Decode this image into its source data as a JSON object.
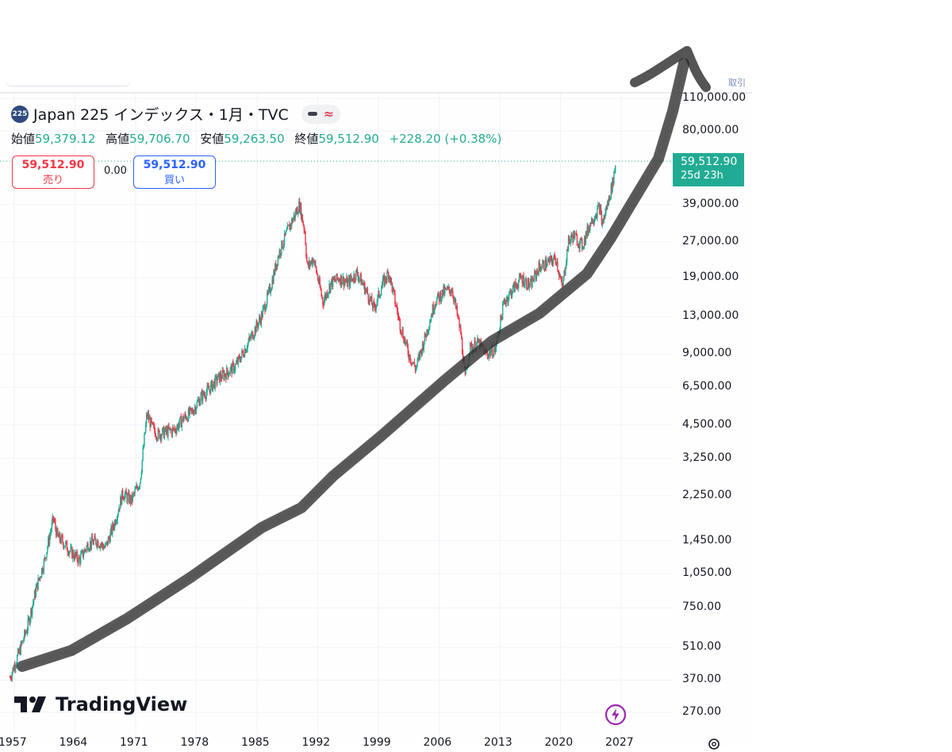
{
  "header": {
    "symbol_badge": "225",
    "title": "Japan 225 インデックス・1月・TVC",
    "corner_text": "取引"
  },
  "ohlc": {
    "open_label": "始値",
    "open": "59,379.12",
    "high_label": "高値",
    "high": "59,706.70",
    "low_label": "安値",
    "low": "59,263.50",
    "close_label": "終値",
    "close": "59,512.90",
    "change": "+228.20 (+0.38%)"
  },
  "trade": {
    "sell_price": "59,512.90",
    "sell_label": "売り",
    "spread": "0.00",
    "buy_price": "59,512.90",
    "buy_label": "買い"
  },
  "last_price": {
    "price": "59,512.90",
    "countdown": "25d 23h"
  },
  "branding": {
    "logo_text": "TradingView"
  },
  "colors": {
    "up": "#22ab94",
    "down": "#f23645",
    "accent": "#2962ff",
    "lightning": "#9c27b0"
  },
  "icons": [
    "lightning-icon",
    "gear-icon",
    "tradingview-logo-icon"
  ],
  "chart_data": {
    "type": "line",
    "title": "Japan 225 インデックス・1月・TVC",
    "scale": "log",
    "x_ticks": [
      "1957",
      "1964",
      "1971",
      "1978",
      "1985",
      "1992",
      "1999",
      "2006",
      "2013",
      "2020",
      "2027"
    ],
    "y_ticks": [
      "110,000.00",
      "80,000.00",
      "39,000.00",
      "27,000.00",
      "19,000.00",
      "13,000.00",
      "9,000.00",
      "6,500.00",
      "4,500.00",
      "3,250.00",
      "2,250.00",
      "1,450.00",
      "1,050.00",
      "750.00",
      "510.00",
      "370.00",
      "270.00"
    ],
    "y_tick_values": [
      110000,
      80000,
      39000,
      27000,
      19000,
      13000,
      9000,
      6500,
      4500,
      3250,
      2250,
      1450,
      1050,
      750,
      510,
      370,
      270
    ],
    "xlim": [
      1957,
      2028
    ],
    "ylim": [
      260,
      125000
    ],
    "grid": true,
    "series": [
      {
        "x": [
          1956.5,
          1957.5,
          1958.5,
          1959.5,
          1960.5,
          1961.5,
          1962.0,
          1962.5,
          1963.5,
          1964.5,
          1965.5,
          1966.5,
          1967.5,
          1968.5,
          1969.5,
          1970.5,
          1971.5,
          1972.3,
          1972.9,
          1973.5,
          1974.5,
          1975.5,
          1976.5,
          1977.5,
          1978.5,
          1979.5,
          1980.5,
          1981.5,
          1982.5,
          1983.5,
          1984.5,
          1985.5,
          1986.5,
          1987.5,
          1988.5,
          1989.9,
          1990.5,
          1990.8,
          1991.5,
          1992.6,
          1993.5,
          1994.5,
          1995.5,
          1996.5,
          1997.5,
          1998.5,
          1999.5,
          2000.2,
          2001.5,
          2002.5,
          2003.3,
          2004.5,
          2005.5,
          2006.5,
          2007.5,
          2008.5,
          2009.0,
          2009.5,
          2010.5,
          2011.5,
          2012.5,
          2013.5,
          2014.5,
          2015.5,
          2016.5,
          2017.5,
          2018.5,
          2019.5,
          2020.2,
          2020.9,
          2021.5,
          2022.5,
          2023.5,
          2024.5,
          2024.8,
          2025.5,
          2026.0,
          2026.4
        ],
        "values": [
          380,
          480,
          620,
          900,
          1200,
          1800,
          1500,
          1450,
          1300,
          1200,
          1400,
          1450,
          1350,
          1700,
          2300,
          2150,
          2600,
          5000,
          4400,
          4100,
          4200,
          4300,
          4800,
          5100,
          5900,
          6400,
          7100,
          7500,
          8000,
          9300,
          11000,
          13000,
          17000,
          24000,
          30000,
          38900,
          30000,
          21000,
          23000,
          15000,
          18000,
          19000,
          18000,
          20000,
          17000,
          14000,
          18000,
          20000,
          12000,
          9000,
          7800,
          11000,
          15000,
          16500,
          17000,
          11000,
          7100,
          9500,
          10000,
          9000,
          9500,
          15000,
          17000,
          19000,
          17500,
          21000,
          22000,
          23000,
          17000,
          27000,
          28800,
          26000,
          33000,
          38000,
          32000,
          40000,
          48000,
          59512.9
        ]
      }
    ]
  }
}
